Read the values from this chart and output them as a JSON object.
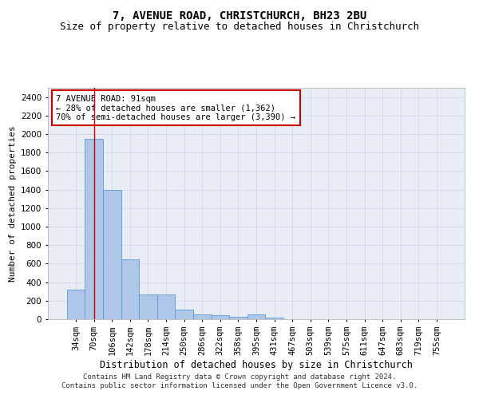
{
  "title": "7, AVENUE ROAD, CHRISTCHURCH, BH23 2BU",
  "subtitle": "Size of property relative to detached houses in Christchurch",
  "xlabel": "Distribution of detached houses by size in Christchurch",
  "ylabel": "Number of detached properties",
  "footer_line1": "Contains HM Land Registry data © Crown copyright and database right 2024.",
  "footer_line2": "Contains public sector information licensed under the Open Government Licence v3.0.",
  "categories": [
    "34sqm",
    "70sqm",
    "106sqm",
    "142sqm",
    "178sqm",
    "214sqm",
    "250sqm",
    "286sqm",
    "322sqm",
    "358sqm",
    "395sqm",
    "431sqm",
    "467sqm",
    "503sqm",
    "539sqm",
    "575sqm",
    "611sqm",
    "647sqm",
    "683sqm",
    "719sqm",
    "755sqm"
  ],
  "values": [
    320,
    1950,
    1400,
    650,
    265,
    265,
    100,
    50,
    40,
    30,
    50,
    20,
    0,
    0,
    0,
    0,
    0,
    0,
    0,
    0,
    0
  ],
  "bar_color": "#aec6e8",
  "bar_edge_color": "#5b9bd5",
  "annotation_line1": "7 AVENUE ROAD: 91sqm",
  "annotation_line2": "← 28% of detached houses are smaller (1,362)",
  "annotation_line3": "70% of semi-detached houses are larger (3,390) →",
  "annotation_box_color": "#ffffff",
  "annotation_box_edge_color": "#cc0000",
  "vline_x_index": 1,
  "vline_color": "#cc0000",
  "ylim": [
    0,
    2500
  ],
  "yticks": [
    0,
    200,
    400,
    600,
    800,
    1000,
    1200,
    1400,
    1600,
    1800,
    2000,
    2200,
    2400
  ],
  "grid_color": "#d0d8e8",
  "background_color": "#e8ecf5",
  "title_fontsize": 10,
  "subtitle_fontsize": 9,
  "xlabel_fontsize": 8.5,
  "ylabel_fontsize": 8,
  "tick_fontsize": 7.5,
  "annotation_fontsize": 7.5,
  "footer_fontsize": 6.5
}
